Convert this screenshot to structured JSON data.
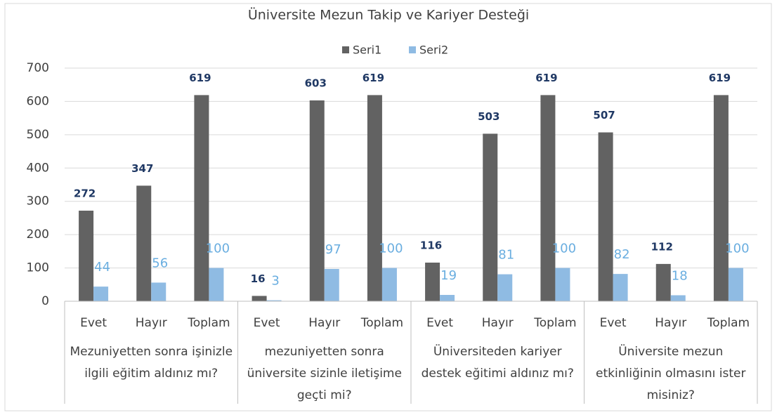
{
  "chart_data": {
    "type": "bar",
    "title": "Üniversite Mezun Takip ve Kariyer Desteği",
    "groups": [
      {
        "name": "Mezuniyetten sonra işinizle ilgili eğitim aldınız mı?",
        "categories": [
          "Evet",
          "Hayır",
          "Toplam"
        ]
      },
      {
        "name": "mezuniyetten sonra üniversite sizinle iletişime geçti mi?",
        "categories": [
          "Evet",
          "Hayır",
          "Toplam"
        ]
      },
      {
        "name": "Üniversiteden kariyer destek eğitimi aldınız mı?",
        "categories": [
          "Evet",
          "Hayır",
          "Toplam"
        ]
      },
      {
        "name": "Üniversite mezun etkinliğinin olmasını ister misiniz?",
        "categories": [
          "Evet",
          "Hayır",
          "Toplam"
        ]
      }
    ],
    "series": [
      {
        "name": "Seri1",
        "color": "#626262",
        "label_color": "#1f3864",
        "values": [
          272,
          347,
          619,
          16,
          603,
          619,
          116,
          503,
          619,
          507,
          112,
          619
        ]
      },
      {
        "name": "Seri2",
        "color": "#8fbbe3",
        "label_color": "#6aaee0",
        "values": [
          44,
          56,
          100,
          3,
          97,
          100,
          19,
          81,
          100,
          82,
          18,
          100
        ]
      }
    ],
    "ylim": [
      0,
      700
    ],
    "yticks": [
      0,
      100,
      200,
      300,
      400,
      500,
      600,
      700
    ],
    "grid": true,
    "legend": "top"
  }
}
